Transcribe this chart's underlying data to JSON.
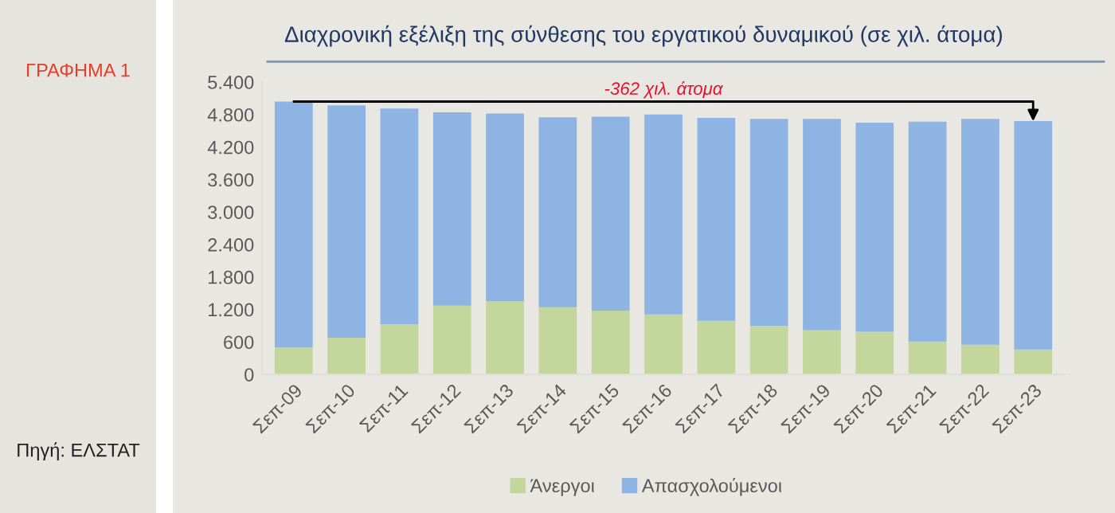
{
  "chart_data": {
    "type": "bar",
    "stacked": true,
    "title": "Διαχρονική εξέλιξη της σύνθεσης του εργατικού δυναμικού (σε χιλ. άτομα)",
    "annotations": [
      "ΓΡΑΦΗΜΑ 1",
      "Πηγή: ΕΛΣΤΑΤ",
      "-362 χιλ. άτομα"
    ],
    "categories": [
      "Σεπ-09",
      "Σεπ-10",
      "Σεπ-11",
      "Σεπ-12",
      "Σεπ-13",
      "Σεπ-14",
      "Σεπ-15",
      "Σεπ-16",
      "Σεπ-17",
      "Σεπ-18",
      "Σεπ-19",
      "Σεπ-20",
      "Σεπ-21",
      "Σεπ-22",
      "Σεπ-23"
    ],
    "series": [
      {
        "name": "Άνεργοι",
        "color": "#c3d69b",
        "values": [
          500,
          680,
          930,
          1270,
          1350,
          1240,
          1180,
          1110,
          990,
          900,
          820,
          790,
          610,
          550,
          460
        ]
      },
      {
        "name": "Απασχολούμενοι",
        "color": "#8eb4e3",
        "values": [
          4540,
          4290,
          3980,
          3570,
          3470,
          3510,
          3580,
          3690,
          3750,
          3820,
          3900,
          3860,
          4060,
          4170,
          4218
        ]
      }
    ],
    "ylim": [
      0,
      5400
    ],
    "yticks": [
      {
        "value": 0,
        "label": "0"
      },
      {
        "value": 600,
        "label": "600"
      },
      {
        "value": 1200,
        "label": "1.200"
      },
      {
        "value": 1800,
        "label": "1.800"
      },
      {
        "value": 2400,
        "label": "2.400"
      },
      {
        "value": 3000,
        "label": "3.000"
      },
      {
        "value": 3600,
        "label": "3.600"
      },
      {
        "value": 4200,
        "label": "4.200"
      },
      {
        "value": 4800,
        "label": "4.800"
      },
      {
        "value": 5400,
        "label": "5.400"
      }
    ],
    "grid": false,
    "legend": "bottom"
  }
}
